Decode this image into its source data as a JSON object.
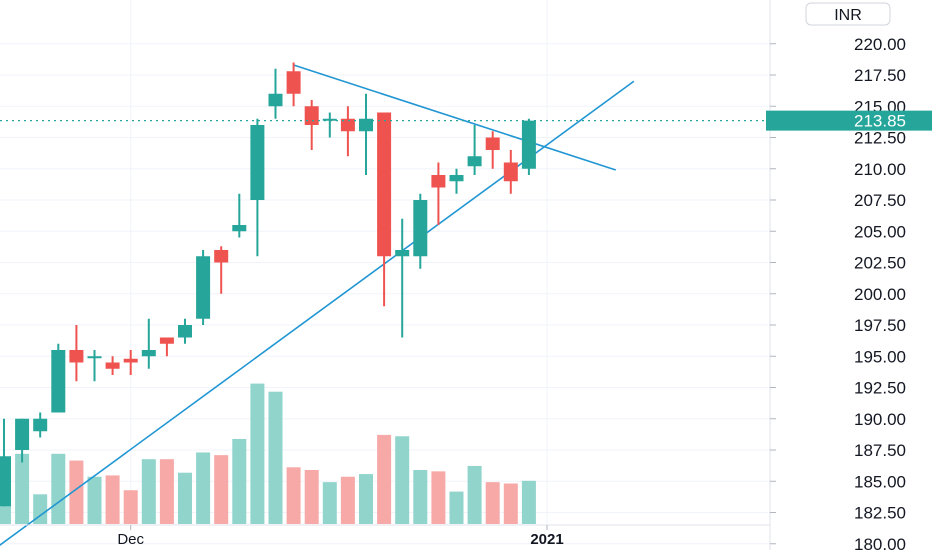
{
  "chart_data": {
    "type": "candlestick",
    "currency": "INR",
    "last_price": "213.85",
    "ylim": [
      179.5,
      223.5
    ],
    "y_ticks": [
      "220.00",
      "217.50",
      "215.00",
      "212.50",
      "210.00",
      "207.50",
      "205.00",
      "202.50",
      "200.00",
      "197.50",
      "195.00",
      "192.50",
      "190.00",
      "187.50",
      "185.00",
      "182.50",
      "180.00"
    ],
    "x_ticks": [
      {
        "label": "Dec",
        "index": 7
      },
      {
        "label": "2021",
        "index": 30
      }
    ],
    "grid": true,
    "colors": {
      "up": "#26a69a",
      "down": "#ef5350",
      "up_volume": "#90d4cc",
      "down_volume": "#f6a9a7",
      "trendline": "#2196d3",
      "price_line": "#26a69a"
    },
    "candles": [
      {
        "o": 183.0,
        "h": 190.0,
        "l": 183.0,
        "c": 187.0
      },
      {
        "o": 187.5,
        "h": 190.0,
        "l": 186.5,
        "c": 190.0
      },
      {
        "o": 189.0,
        "h": 190.5,
        "l": 188.5,
        "c": 190.0
      },
      {
        "o": 190.5,
        "h": 196.0,
        "l": 190.5,
        "c": 195.5
      },
      {
        "o": 195.5,
        "h": 197.5,
        "l": 193.0,
        "c": 194.5
      },
      {
        "o": 195.0,
        "h": 195.5,
        "l": 193.0,
        "c": 195.0
      },
      {
        "o": 194.5,
        "h": 195.0,
        "l": 193.5,
        "c": 194.0
      },
      {
        "o": 194.8,
        "h": 195.5,
        "l": 193.5,
        "c": 194.5
      },
      {
        "o": 195.0,
        "h": 198.0,
        "l": 194.0,
        "c": 195.5
      },
      {
        "o": 196.5,
        "h": 196.5,
        "l": 195.0,
        "c": 196.0
      },
      {
        "o": 196.5,
        "h": 198.0,
        "l": 196.0,
        "c": 197.5
      },
      {
        "o": 198.0,
        "h": 203.5,
        "l": 197.5,
        "c": 203.0
      },
      {
        "o": 203.5,
        "h": 203.8,
        "l": 200.0,
        "c": 202.5
      },
      {
        "o": 205.0,
        "h": 208.0,
        "l": 204.5,
        "c": 205.5
      },
      {
        "o": 207.5,
        "h": 214.0,
        "l": 203.0,
        "c": 213.5
      },
      {
        "o": 215.0,
        "h": 218.0,
        "l": 214.0,
        "c": 216.0
      },
      {
        "o": 217.8,
        "h": 218.5,
        "l": 215.0,
        "c": 216.0
      },
      {
        "o": 215.0,
        "h": 215.5,
        "l": 211.5,
        "c": 213.5
      },
      {
        "o": 214.0,
        "h": 214.5,
        "l": 212.5,
        "c": 214.0
      },
      {
        "o": 214.0,
        "h": 215.0,
        "l": 211.0,
        "c": 213.0
      },
      {
        "o": 213.0,
        "h": 216.0,
        "l": 209.5,
        "c": 214.0
      },
      {
        "o": 214.5,
        "h": 214.5,
        "l": 199.0,
        "c": 203.0
      },
      {
        "o": 203.0,
        "h": 206.0,
        "l": 196.5,
        "c": 203.5
      },
      {
        "o": 203.0,
        "h": 208.0,
        "l": 202.0,
        "c": 207.5
      },
      {
        "o": 209.5,
        "h": 210.5,
        "l": 205.5,
        "c": 208.5
      },
      {
        "o": 209.0,
        "h": 210.0,
        "l": 208.0,
        "c": 209.5
      },
      {
        "o": 210.2,
        "h": 213.5,
        "l": 209.5,
        "c": 211.0
      },
      {
        "o": 212.5,
        "h": 213.0,
        "l": 210.0,
        "c": 211.5
      },
      {
        "o": 210.5,
        "h": 211.5,
        "l": 208.0,
        "c": 209.0
      },
      {
        "o": 210.0,
        "h": 214.0,
        "l": 209.5,
        "c": 213.85
      }
    ],
    "volume": [
      36,
      52,
      22,
      52,
      47,
      35,
      36,
      25,
      48,
      48,
      38,
      53,
      51,
      63,
      104,
      98,
      42,
      40,
      31,
      35,
      37,
      66,
      65,
      40,
      39,
      24,
      43,
      31,
      30,
      32
    ],
    "trendlines": [
      {
        "from": {
          "index": -0.6,
          "price": 179.5
        },
        "to": {
          "index": 34.8,
          "price": 217.0
        }
      },
      {
        "from": {
          "index": 16.0,
          "price": 218.3
        },
        "to": {
          "index": 33.8,
          "price": 209.9
        }
      }
    ]
  }
}
